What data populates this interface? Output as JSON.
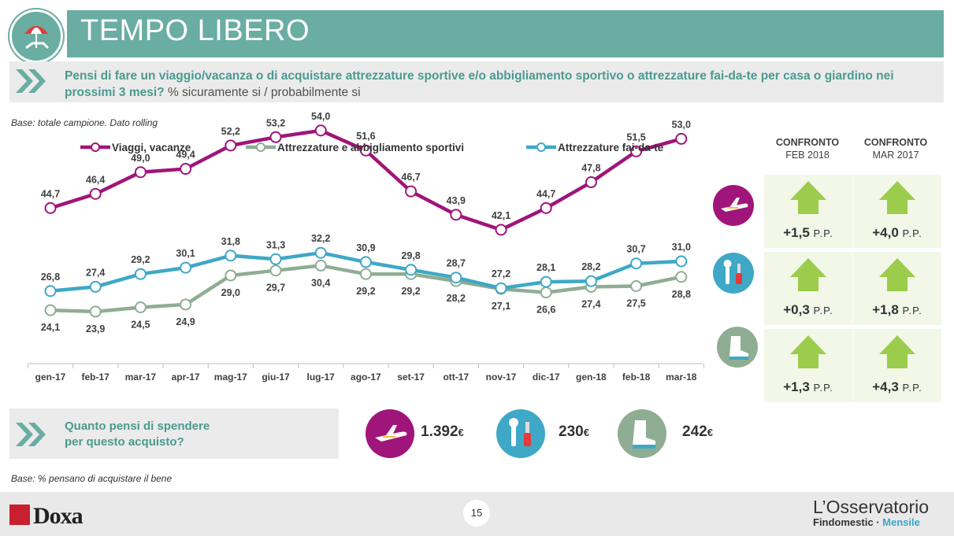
{
  "header": {
    "title": "TEMPO LIBERO",
    "question_bold": "Pensi di fare un viaggio/vacanza o di acquistare attrezzature sportive e/o abbigliamento sportivo o attrezzature fai-da-te per casa o giardino nei prossimi 3 mesi?",
    "question_pct": "% sicuramente si / probabilmente si"
  },
  "base_top": "Base: totale campione. Dato rolling",
  "base_bottom": "Base: % pensano di acquistare il bene",
  "colors": {
    "viaggi": "#a0157a",
    "sport": "#8fad92",
    "faidate": "#3ea8c6",
    "accent": "#6aada2"
  },
  "chart_data": {
    "type": "line",
    "categories": [
      "gen-17",
      "feb-17",
      "mar-17",
      "apr-17",
      "mag-17",
      "giu-17",
      "lug-17",
      "ago-17",
      "set-17",
      "ott-17",
      "nov-17",
      "dic-17",
      "gen-18",
      "feb-18",
      "mar-18"
    ],
    "series": [
      {
        "name": "Viaggi, vacanze",
        "values": [
          44.7,
          46.4,
          49.0,
          49.4,
          52.2,
          53.2,
          54.0,
          51.6,
          46.7,
          43.9,
          42.1,
          44.7,
          47.8,
          51.5,
          53.0
        ]
      },
      {
        "name": "Attrezzature e abbigliamento sportivi",
        "values": [
          24.1,
          23.9,
          24.5,
          24.9,
          29.0,
          29.7,
          30.4,
          29.2,
          29.2,
          28.2,
          27.1,
          26.6,
          27.4,
          27.5,
          28.8
        ]
      },
      {
        "name": "Attrezzature fai-da-te",
        "values": [
          26.8,
          27.4,
          29.2,
          30.1,
          31.8,
          31.3,
          32.2,
          30.9,
          29.8,
          28.7,
          27.2,
          28.1,
          28.2,
          30.7,
          31.0
        ]
      }
    ],
    "legend": "top",
    "grid": false
  },
  "comparison": {
    "headers": [
      {
        "title": "CONFRONTO",
        "sub": "FEB 2018"
      },
      {
        "title": "CONFRONTO",
        "sub": "MAR 2017"
      }
    ],
    "unit": "P.P.",
    "rows": [
      {
        "name": "viaggi",
        "icon": "airplane-icon",
        "feb": "+1,5",
        "mar": "+4,0"
      },
      {
        "name": "faidate",
        "icon": "tools-icon",
        "feb": "+0,3",
        "mar": "+1,8"
      },
      {
        "name": "sport",
        "icon": "boot-icon",
        "feb": "+1,3",
        "mar": "+4,3"
      }
    ]
  },
  "spend": {
    "question": [
      "Quanto pensi di spendere",
      "per questo acquisto?"
    ],
    "items": [
      {
        "icon": "airplane-icon",
        "value": "1.392",
        "currency": "€"
      },
      {
        "icon": "tools-icon",
        "value": "230",
        "currency": "€"
      },
      {
        "icon": "boot-icon",
        "value": "242",
        "currency": "€"
      }
    ]
  },
  "footer": {
    "page": "15",
    "brand": "Doxa",
    "osservatorio": "L’Osservatorio",
    "findomestic": "Findomestic",
    "sep": " · ",
    "mensile": "Mensile"
  }
}
